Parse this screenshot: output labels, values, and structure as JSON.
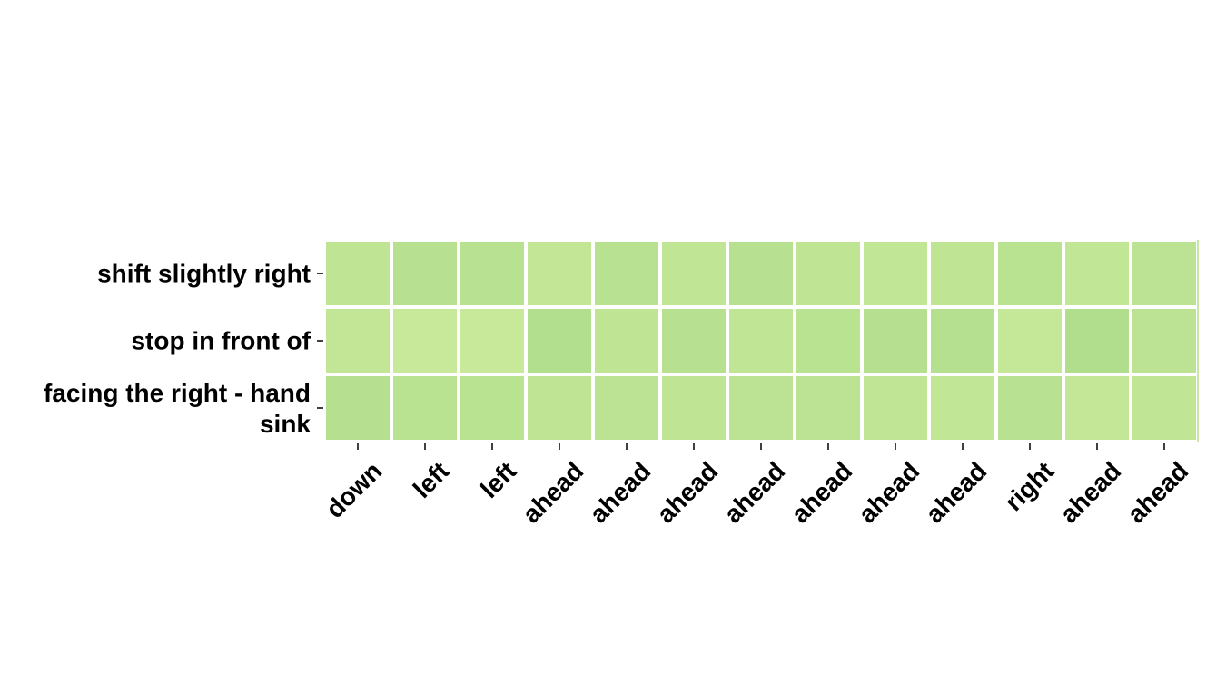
{
  "chart_data": {
    "type": "heatmap",
    "x_labels": [
      "down",
      "left",
      "left",
      "ahead",
      "ahead",
      "ahead",
      "ahead",
      "ahead",
      "ahead",
      "ahead",
      "right",
      "ahead",
      "ahead"
    ],
    "y_labels": [
      "shift slightly right",
      "stop in front of",
      "facing the right - hand sink"
    ],
    "values": [
      [
        0.45,
        0.6,
        0.58,
        0.35,
        0.58,
        0.42,
        0.6,
        0.45,
        0.38,
        0.45,
        0.55,
        0.38,
        0.5
      ],
      [
        0.35,
        0.25,
        0.22,
        0.7,
        0.45,
        0.6,
        0.42,
        0.55,
        0.62,
        0.65,
        0.3,
        0.72,
        0.5
      ],
      [
        0.62,
        0.55,
        0.55,
        0.45,
        0.48,
        0.45,
        0.48,
        0.48,
        0.4,
        0.38,
        0.58,
        0.32,
        0.42
      ]
    ],
    "colormap": {
      "low": "#d4ee9f",
      "high": "#a3d886"
    },
    "colorbar": false,
    "grid": false
  }
}
